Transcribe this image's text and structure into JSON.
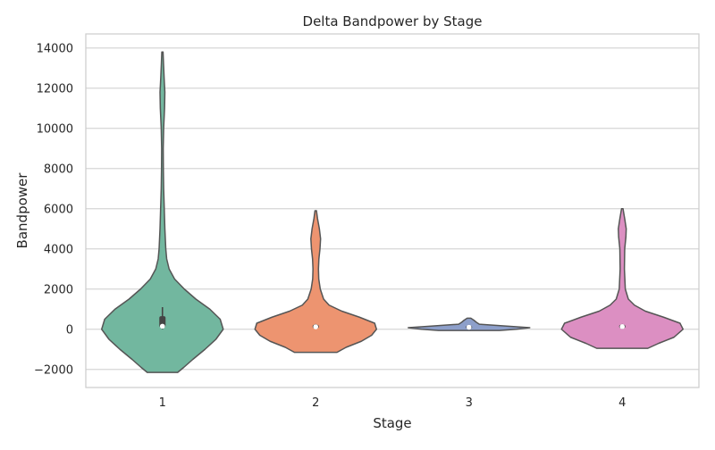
{
  "chart_data": {
    "type": "violin",
    "title": "Delta Bandpower by Stage",
    "xlabel": "Stage",
    "ylabel": "Bandpower",
    "categories": [
      "1",
      "2",
      "3",
      "4"
    ],
    "ylim": [
      -2900,
      14700
    ],
    "yticks": [
      -2000,
      0,
      2000,
      4000,
      6000,
      8000,
      10000,
      12000,
      14000
    ],
    "grid": "horizontal",
    "violins": [
      {
        "category": "1",
        "color": "#72b79f",
        "profile": [
          {
            "y": -2150,
            "w": 0.25
          },
          {
            "y": -1900,
            "w": 0.35
          },
          {
            "y": -1500,
            "w": 0.5
          },
          {
            "y": -1000,
            "w": 0.7
          },
          {
            "y": -500,
            "w": 0.88
          },
          {
            "y": 0,
            "w": 1.0
          },
          {
            "y": 500,
            "w": 0.95
          },
          {
            "y": 1000,
            "w": 0.78
          },
          {
            "y": 1500,
            "w": 0.55
          },
          {
            "y": 2000,
            "w": 0.36
          },
          {
            "y": 2500,
            "w": 0.2
          },
          {
            "y": 3000,
            "w": 0.11
          },
          {
            "y": 3500,
            "w": 0.07
          },
          {
            "y": 4000,
            "w": 0.055
          },
          {
            "y": 5000,
            "w": 0.04
          },
          {
            "y": 6000,
            "w": 0.03
          },
          {
            "y": 7000,
            "w": 0.02
          },
          {
            "y": 8000,
            "w": 0.015
          },
          {
            "y": 9000,
            "w": 0.013
          },
          {
            "y": 10000,
            "w": 0.02
          },
          {
            "y": 11000,
            "w": 0.035
          },
          {
            "y": 11800,
            "w": 0.04
          },
          {
            "y": 12500,
            "w": 0.028
          },
          {
            "y": 13200,
            "w": 0.018
          },
          {
            "y": 13800,
            "w": 0.01
          }
        ],
        "q1": 100,
        "median": 150,
        "q3": 650,
        "whisker_low": 0,
        "whisker_high": 1100
      },
      {
        "category": "2",
        "color": "#ed9470",
        "profile": [
          {
            "y": -1150,
            "w": 0.35
          },
          {
            "y": -900,
            "w": 0.5
          },
          {
            "y": -600,
            "w": 0.75
          },
          {
            "y": -300,
            "w": 0.92
          },
          {
            "y": 0,
            "w": 1.0
          },
          {
            "y": 300,
            "w": 0.97
          },
          {
            "y": 600,
            "w": 0.72
          },
          {
            "y": 900,
            "w": 0.43
          },
          {
            "y": 1200,
            "w": 0.22
          },
          {
            "y": 1500,
            "w": 0.13
          },
          {
            "y": 2000,
            "w": 0.075
          },
          {
            "y": 2500,
            "w": 0.05
          },
          {
            "y": 3000,
            "w": 0.045
          },
          {
            "y": 3500,
            "w": 0.052
          },
          {
            "y": 4000,
            "w": 0.07
          },
          {
            "y": 4500,
            "w": 0.08
          },
          {
            "y": 5000,
            "w": 0.06
          },
          {
            "y": 5500,
            "w": 0.03
          },
          {
            "y": 5900,
            "w": 0.012
          }
        ],
        "q1": 50,
        "median": 120,
        "q3": 220,
        "whisker_low": 0,
        "whisker_high": 260
      },
      {
        "category": "3",
        "color": "#8d9fca",
        "profile": [
          {
            "y": -60,
            "w": 0.5
          },
          {
            "y": 0,
            "w": 0.78
          },
          {
            "y": 80,
            "w": 1.0
          },
          {
            "y": 150,
            "w": 0.65
          },
          {
            "y": 250,
            "w": 0.17
          },
          {
            "y": 350,
            "w": 0.12
          },
          {
            "y": 450,
            "w": 0.08
          },
          {
            "y": 550,
            "w": 0.03
          }
        ],
        "q1": 40,
        "median": 100,
        "q3": 170,
        "whisker_low": 20,
        "whisker_high": 220
      },
      {
        "category": "4",
        "color": "#dc8fc2",
        "profile": [
          {
            "y": -950,
            "w": 0.42
          },
          {
            "y": -700,
            "w": 0.6
          },
          {
            "y": -400,
            "w": 0.85
          },
          {
            "y": 0,
            "w": 1.0
          },
          {
            "y": 300,
            "w": 0.95
          },
          {
            "y": 600,
            "w": 0.68
          },
          {
            "y": 900,
            "w": 0.38
          },
          {
            "y": 1200,
            "w": 0.2
          },
          {
            "y": 1500,
            "w": 0.1
          },
          {
            "y": 2000,
            "w": 0.05
          },
          {
            "y": 3000,
            "w": 0.035
          },
          {
            "y": 4000,
            "w": 0.04
          },
          {
            "y": 4600,
            "w": 0.06
          },
          {
            "y": 5000,
            "w": 0.065
          },
          {
            "y": 5500,
            "w": 0.04
          },
          {
            "y": 6000,
            "w": 0.012
          }
        ],
        "q1": 60,
        "median": 130,
        "q3": 220,
        "whisker_low": 0,
        "whisker_high": 260
      }
    ]
  }
}
